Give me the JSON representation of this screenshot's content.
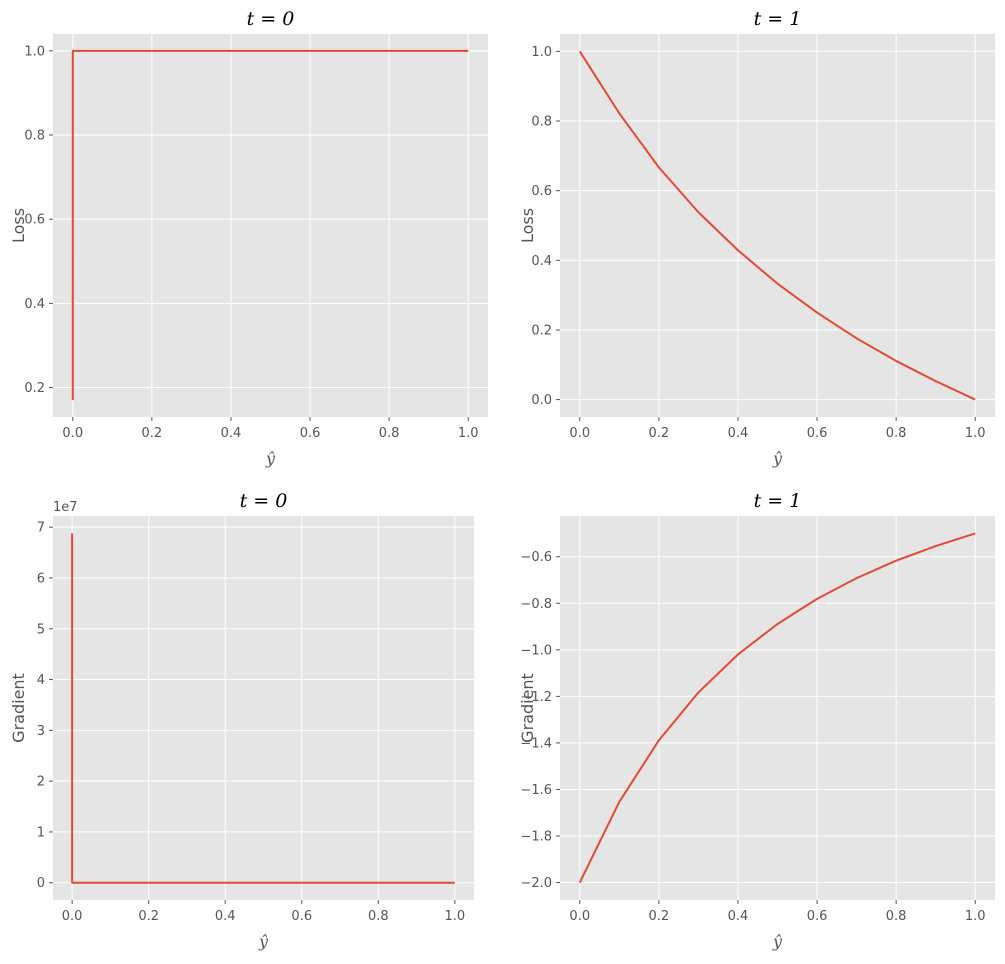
{
  "chart_data": [
    {
      "id": "loss_t0",
      "type": "line",
      "title": "t = 0",
      "xlabel": "ŷ",
      "ylabel": "Loss",
      "xlim": [
        -0.05,
        1.05
      ],
      "ylim": [
        0.13,
        1.04
      ],
      "xticks": [
        0.0,
        0.2,
        0.4,
        0.6,
        0.8,
        1.0
      ],
      "xtick_labels": [
        "0.0",
        "0.2",
        "0.4",
        "0.6",
        "0.8",
        "1.0"
      ],
      "yticks": [
        0.2,
        0.4,
        0.6,
        0.8,
        1.0
      ],
      "ytick_labels": [
        "0.2",
        "0.4",
        "0.6",
        "0.8",
        "1.0"
      ],
      "offset_text": "",
      "grid": true,
      "series": [
        {
          "x": [
            0.0,
            2e-05,
            0.0001,
            0.0005,
            0.001,
            0.002,
            0.005,
            0.01,
            0.1,
            0.2,
            0.4,
            0.6,
            0.8,
            1.0
          ],
          "y": [
            0.17,
            0.9996,
            0.9998,
            0.99995,
            1.0,
            1.0,
            1.0,
            1.0,
            1.0,
            1.0,
            1.0,
            1.0,
            1.0,
            1.0
          ]
        }
      ]
    },
    {
      "id": "loss_t1",
      "type": "line",
      "title": "t = 1",
      "xlabel": "ŷ",
      "ylabel": "Loss",
      "xlim": [
        -0.05,
        1.05
      ],
      "ylim": [
        -0.05,
        1.05
      ],
      "xticks": [
        0.0,
        0.2,
        0.4,
        0.6,
        0.8,
        1.0
      ],
      "xtick_labels": [
        "0.0",
        "0.2",
        "0.4",
        "0.6",
        "0.8",
        "1.0"
      ],
      "yticks": [
        0.0,
        0.2,
        0.4,
        0.6,
        0.8,
        1.0
      ],
      "ytick_labels": [
        "0.0",
        "0.2",
        "0.4",
        "0.6",
        "0.8",
        "1.0"
      ],
      "offset_text": "",
      "grid": true,
      "series": [
        {
          "x": [
            0.0,
            0.1,
            0.2,
            0.3,
            0.4,
            0.5,
            0.6,
            0.7,
            0.8,
            0.9,
            1.0
          ],
          "y": [
            1.0,
            0.822,
            0.667,
            0.538,
            0.429,
            0.333,
            0.25,
            0.176,
            0.111,
            0.053,
            0.0
          ]
        }
      ]
    },
    {
      "id": "grad_t0",
      "type": "line",
      "title": "t = 0",
      "xlabel": "ŷ",
      "ylabel": "Gradient",
      "xlim": [
        -0.05,
        1.05
      ],
      "ylim": [
        -3400000,
        72200000
      ],
      "xticks": [
        0.0,
        0.2,
        0.4,
        0.6,
        0.8,
        1.0
      ],
      "xtick_labels": [
        "0.0",
        "0.2",
        "0.4",
        "0.6",
        "0.8",
        "1.0"
      ],
      "yticks": [
        0,
        10000000,
        20000000,
        30000000,
        40000000,
        50000000,
        60000000,
        70000000
      ],
      "ytick_labels": [
        "0",
        "1",
        "2",
        "3",
        "4",
        "5",
        "6",
        "7"
      ],
      "offset_text": "1e7",
      "grid": true,
      "series": [
        {
          "x": [
            0.0,
            2e-05,
            0.0001,
            0.001,
            0.01,
            0.2,
            0.4,
            0.6,
            0.8,
            1.0
          ],
          "y": [
            68800000,
            500000,
            20000,
            200,
            2,
            0,
            0,
            0,
            0,
            0
          ]
        }
      ]
    },
    {
      "id": "grad_t1",
      "type": "line",
      "title": "t = 1",
      "xlabel": "ŷ",
      "ylabel": "Gradient",
      "xlim": [
        -0.05,
        1.05
      ],
      "ylim": [
        -2.075,
        -0.425
      ],
      "xticks": [
        0.0,
        0.2,
        0.4,
        0.6,
        0.8,
        1.0
      ],
      "xtick_labels": [
        "0.0",
        "0.2",
        "0.4",
        "0.6",
        "0.8",
        "1.0"
      ],
      "yticks": [
        -2.0,
        -1.8,
        -1.6,
        -1.4,
        -1.2,
        -1.0,
        -0.8,
        -0.6
      ],
      "ytick_labels": [
        "−2.0",
        "−1.8",
        "−1.6",
        "−1.4",
        "−1.2",
        "−1.0",
        "−0.8",
        "−0.6"
      ],
      "offset_text": "",
      "grid": true,
      "series": [
        {
          "x": [
            0.0,
            0.1,
            0.2,
            0.3,
            0.4,
            0.5,
            0.6,
            0.7,
            0.8,
            0.9,
            1.0
          ],
          "y": [
            -2.0,
            -1.653,
            -1.389,
            -1.183,
            -1.02,
            -0.889,
            -0.781,
            -0.692,
            -0.617,
            -0.554,
            -0.5
          ]
        }
      ]
    }
  ],
  "style": {
    "line_color": "#e24a33",
    "background": "#e5e5e5",
    "grid_color": "#ffffff"
  }
}
